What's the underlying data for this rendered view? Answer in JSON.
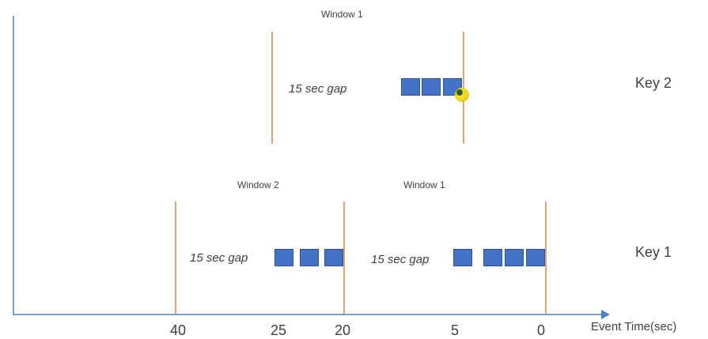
{
  "axis": {
    "title": "Event Time(sec)",
    "ticks": [
      "40",
      "25",
      "20",
      "5",
      "0"
    ]
  },
  "keys": {
    "key2": {
      "label": "Key 2",
      "window_label": "Window 1",
      "gap_label": "15 sec gap"
    },
    "key1": {
      "label": "Key 1",
      "window2_label": "Window 2",
      "window1_label": "Window 1",
      "gap_label_left": "15 sec gap",
      "gap_label_right": "15 sec gap"
    }
  },
  "colors": {
    "event": "#4472c4",
    "window_boundary": "#e0a27a",
    "axis": "#7a9fd3"
  }
}
